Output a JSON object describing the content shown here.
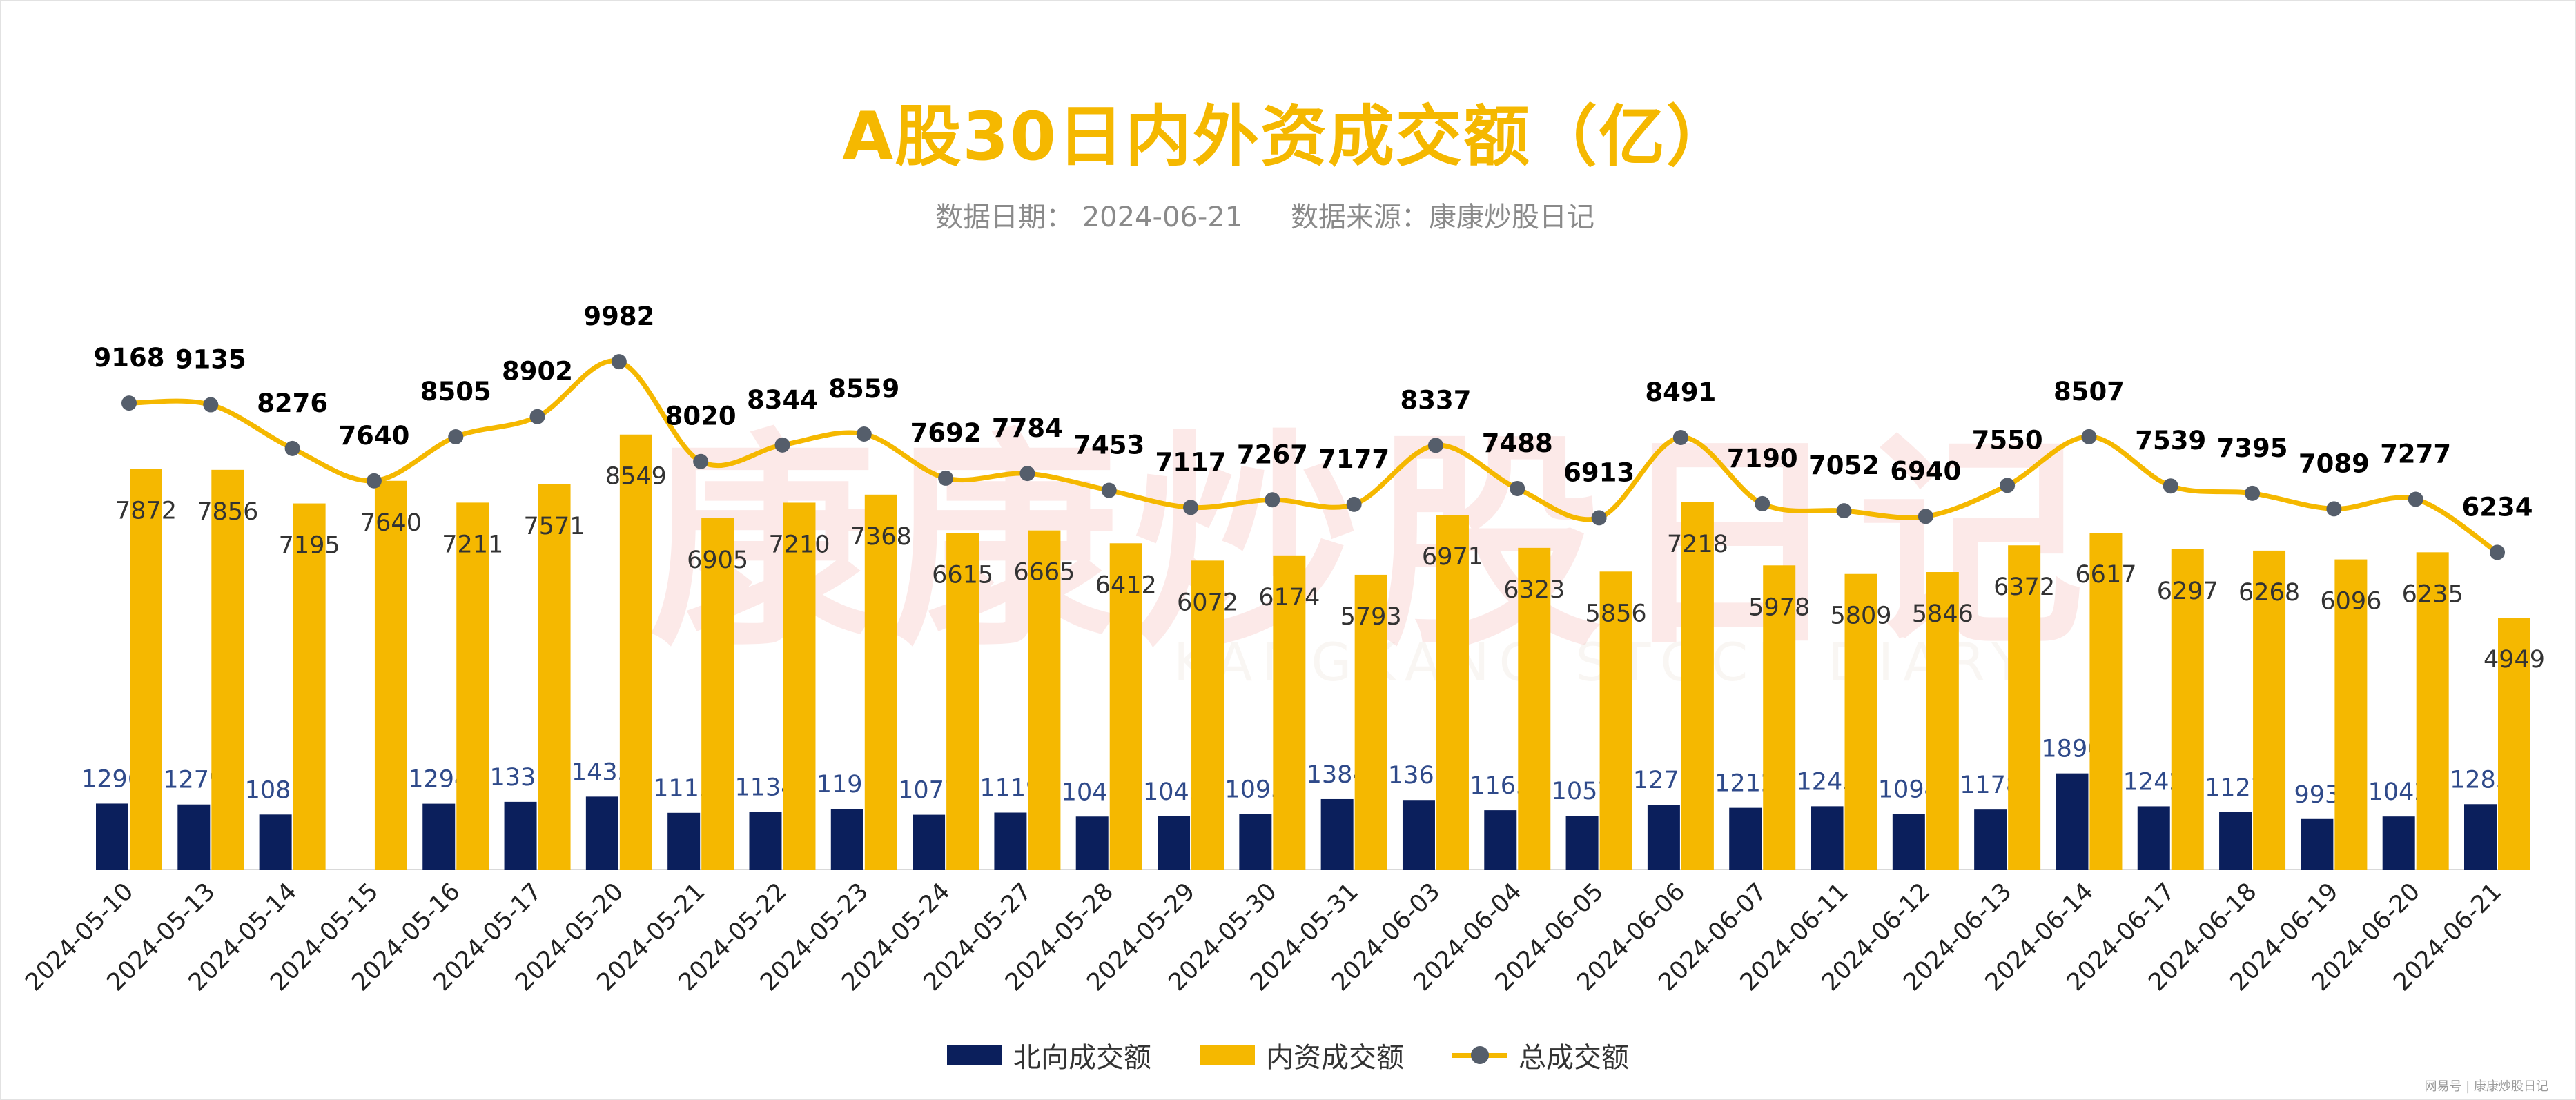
{
  "title": "A股30日内外资成交额（亿）",
  "date_text": "数据日期：  2024-06-21",
  "source_text": "数据来源：康康炒股日记",
  "watermark": "康康炒股日记",
  "watermark_en": "KANGKANG STOCK DIARY",
  "corner_text": "网易号 | 康康炒股日记",
  "legend": [
    "北向成交额",
    "内资成交额",
    "总成交额"
  ],
  "colors": {
    "north": "#0B1F5C",
    "inner": "#F5B800",
    "total_line": "#F5B800",
    "total_marker": "#555e6b"
  },
  "chart_data": {
    "type": "bar",
    "title": "A股30日内外资成交额（亿）",
    "categories": [
      "2024-05-10",
      "2024-05-13",
      "2024-05-14",
      "2024-05-15",
      "2024-05-16",
      "2024-05-17",
      "2024-05-20",
      "2024-05-21",
      "2024-05-22",
      "2024-05-23",
      "2024-05-24",
      "2024-05-27",
      "2024-05-28",
      "2024-05-29",
      "2024-05-30",
      "2024-05-31",
      "2024-06-03",
      "2024-06-04",
      "2024-06-05",
      "2024-06-06",
      "2024-06-07",
      "2024-06-11",
      "2024-06-12",
      "2024-06-13",
      "2024-06-14",
      "2024-06-17",
      "2024-06-18",
      "2024-06-19",
      "2024-06-20",
      "2024-06-21"
    ],
    "series": [
      {
        "name": "北向成交额",
        "type": "bar",
        "values": [
          1296,
          1279,
          1081,
          null,
          1294,
          1331,
          1433,
          1115,
          1134,
          1191,
          1077,
          1119,
          1041,
          1045,
          1093,
          1384,
          1367,
          1165,
          1057,
          1273,
          1212,
          1243,
          1094,
          1178,
          1890,
          1242,
          1127,
          993,
          1042,
          1285
        ]
      },
      {
        "name": "内资成交额",
        "type": "bar",
        "values": [
          7872,
          7856,
          7195,
          7640,
          7211,
          7571,
          8549,
          6905,
          7210,
          7368,
          6615,
          6665,
          6412,
          6072,
          6174,
          5793,
          6971,
          6323,
          5856,
          7218,
          5978,
          5809,
          5846,
          6372,
          6617,
          6297,
          6268,
          6096,
          6235,
          4949
        ]
      },
      {
        "name": "总成交额",
        "type": "line",
        "values": [
          9168,
          9135,
          8276,
          7640,
          8505,
          8902,
          9982,
          8020,
          8344,
          8559,
          7692,
          7784,
          7453,
          7117,
          7267,
          7177,
          8337,
          7488,
          6913,
          8491,
          7190,
          7052,
          6940,
          7550,
          8507,
          7539,
          7395,
          7089,
          7277,
          6234
        ]
      }
    ],
    "ylim": [
      0,
      13700
    ],
    "grid": false,
    "legend_position": "bottom"
  }
}
